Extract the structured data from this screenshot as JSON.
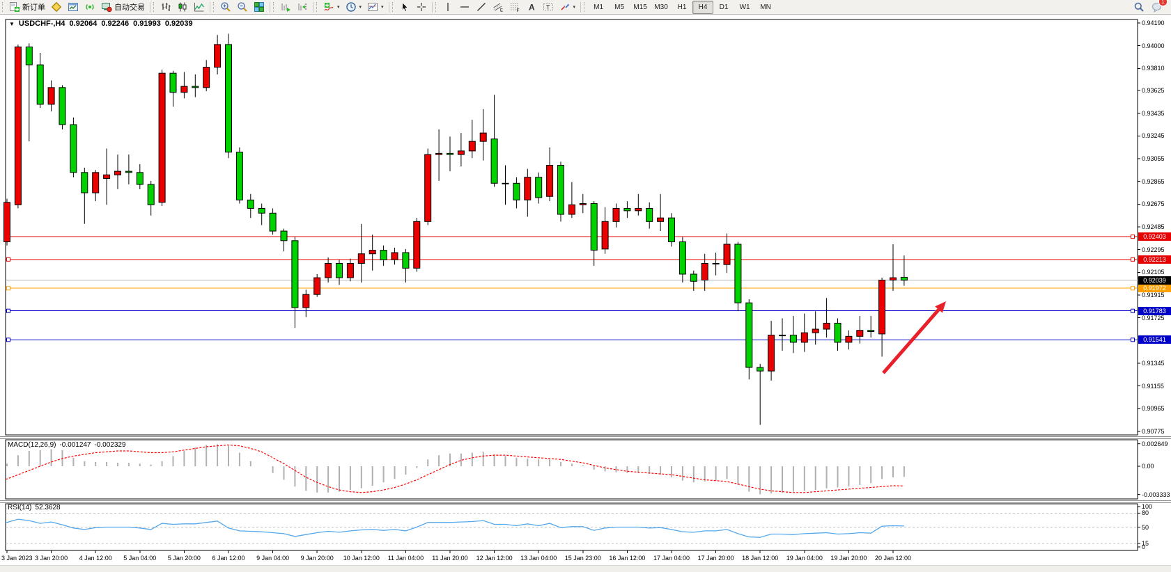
{
  "toolbar": {
    "groups": [
      [
        {
          "name": "new-order",
          "icon": "new-order-icon",
          "label": "新订单"
        },
        {
          "name": "metaeditor",
          "icon": "metaeditor-icon"
        },
        {
          "name": "terminal",
          "icon": "terminal-icon"
        },
        {
          "name": "signals",
          "icon": "signals-icon"
        },
        {
          "name": "auto-trading",
          "icon": "auto-trading-icon",
          "label": "自动交易"
        }
      ],
      [
        {
          "name": "bar-chart",
          "icon": "bar-chart-icon"
        },
        {
          "name": "candle-chart",
          "icon": "candle-chart-icon"
        },
        {
          "name": "line-chart",
          "icon": "line-chart-icon"
        }
      ],
      [
        {
          "name": "zoom-in",
          "icon": "zoom-in-icon"
        },
        {
          "name": "zoom-out",
          "icon": "zoom-out-icon"
        },
        {
          "name": "tile-windows",
          "icon": "tile-windows-icon"
        }
      ],
      [
        {
          "name": "auto-scroll",
          "icon": "auto-scroll-icon"
        },
        {
          "name": "chart-shift",
          "icon": "chart-shift-icon"
        }
      ],
      [
        {
          "name": "indicators",
          "icon": "indicators-icon",
          "dropdown": true
        },
        {
          "name": "periods",
          "icon": "periods-icon",
          "dropdown": true
        },
        {
          "name": "templates",
          "icon": "templates-icon",
          "dropdown": true
        }
      ],
      [
        {
          "name": "cursor",
          "icon": "cursor-icon"
        },
        {
          "name": "crosshair",
          "icon": "crosshair-icon"
        }
      ],
      [
        {
          "name": "vertical-line",
          "icon": "vertical-line-icon"
        },
        {
          "name": "horizontal-line",
          "icon": "horizontal-line-icon"
        },
        {
          "name": "trendline",
          "icon": "trendline-icon"
        },
        {
          "name": "equidistant-channel",
          "icon": "channel-icon"
        },
        {
          "name": "fibonacci",
          "icon": "fibonacci-icon"
        },
        {
          "name": "text",
          "icon": "text-icon"
        },
        {
          "name": "text-label",
          "icon": "label-icon"
        },
        {
          "name": "arrows",
          "icon": "shapes-icon",
          "dropdown": true
        }
      ]
    ],
    "timeframes": [
      {
        "label": "M1"
      },
      {
        "label": "M5"
      },
      {
        "label": "M15"
      },
      {
        "label": "M30"
      },
      {
        "label": "H1"
      },
      {
        "label": "H4",
        "active": true
      },
      {
        "label": "D1"
      },
      {
        "label": "W1"
      },
      {
        "label": "MN"
      }
    ],
    "right": [
      {
        "name": "search",
        "icon": "search-icon"
      },
      {
        "name": "community",
        "icon": "community-icon",
        "badge": "1"
      }
    ]
  },
  "chart": {
    "title": {
      "symbol": "USDCHF-,H4",
      "open": "0.92064",
      "high": "0.92246",
      "low": "0.91993",
      "close": "0.92039"
    },
    "price_axis": {
      "ticks": [
        "0.94190",
        "0.94000",
        "0.93810",
        "0.93625",
        "0.93435",
        "0.93245",
        "0.93055",
        "0.92865",
        "0.92675",
        "0.92485",
        "0.92295",
        "0.92105",
        "0.91915",
        "0.91725",
        "0.91345",
        "0.91155",
        "0.90965",
        "0.90775"
      ]
    },
    "levels": [
      {
        "price": 0.92403,
        "label": "0.92403",
        "color": "#e60000",
        "type": "resistance"
      },
      {
        "price": 0.92213,
        "label": "0.92213",
        "color": "#e60000",
        "type": "resistance"
      },
      {
        "price": 0.91972,
        "label": "0.91972",
        "color": "#ffa000",
        "type": "pivot"
      },
      {
        "price": 0.91783,
        "label": "0.91783",
        "color": "#0000c8",
        "type": "support"
      },
      {
        "price": 0.91541,
        "label": "0.91541",
        "color": "#0000c8",
        "type": "support"
      }
    ],
    "bid_line": {
      "price": 0.92039,
      "label": "0.92039",
      "line_color": "#b4b4b4",
      "badge_color": "#000000"
    },
    "time_axis": [
      "3 Jan 2023",
      "3 Jan 20:00",
      "4 Jan 12:00",
      "5 Jan 04:00",
      "5 Jan 20:00",
      "6 Jan 12:00",
      "9 Jan 04:00",
      "9 Jan 20:00",
      "10 Jan 12:00",
      "11 Jan 04:00",
      "11 Jan 20:00",
      "12 Jan 12:00",
      "13 Jan 04:00",
      "15 Jan 23:00",
      "16 Jan 12:00",
      "17 Jan 04:00",
      "17 Jan 20:00",
      "18 Jan 12:00",
      "19 Jan 04:00",
      "19 Jan 20:00",
      "20 Jan 12:00"
    ],
    "annotation_arrow": {
      "color": "#e8202a"
    }
  },
  "indicators": {
    "macd": {
      "label": "MACD(12,26,9)",
      "value_main": "-0.001247",
      "value_signal": "-0.002329",
      "axis": [
        "0.002649",
        "0.00",
        "-0.003333"
      ],
      "hist_color": "#b0b0b0",
      "signal_color": "#ff0000"
    },
    "rsi": {
      "label": "RSI(14)",
      "value": "52.3628",
      "axis": [
        "100",
        "80",
        "50",
        "15",
        "0"
      ],
      "dashed_levels": [
        80,
        50,
        15
      ],
      "line_color": "#55a8ec"
    }
  },
  "chart_data": {
    "type": "candlestick",
    "symbol": "USDCHF",
    "timeframe": "H4",
    "color_convention": "red=bullish green=bearish",
    "bull_color": "#eb0000",
    "bear_color": "#00d200",
    "ylim": [
      0.90743,
      0.94195
    ],
    "macd_range": [
      -0.003333,
      0.002649
    ],
    "rsi_range": [
      0,
      100
    ],
    "candles": [
      [
        0.9236,
        0.9272,
        0.9233,
        0.9269
      ],
      [
        0.9267,
        0.9401,
        0.9264,
        0.9399
      ],
      [
        0.9399,
        0.9402,
        0.932,
        0.9384
      ],
      [
        0.9384,
        0.9394,
        0.9348,
        0.9351
      ],
      [
        0.9351,
        0.9371,
        0.9345,
        0.9365
      ],
      [
        0.9365,
        0.9367,
        0.933,
        0.9334
      ],
      [
        0.9334,
        0.934,
        0.929,
        0.9294
      ],
      [
        0.9294,
        0.9298,
        0.9251,
        0.9277
      ],
      [
        0.9277,
        0.9296,
        0.927,
        0.9294
      ],
      [
        0.9289,
        0.9314,
        0.9267,
        0.9292
      ],
      [
        0.9292,
        0.9309,
        0.928,
        0.9295
      ],
      [
        0.9295,
        0.9309,
        0.9284,
        0.9294
      ],
      [
        0.9294,
        0.9301,
        0.928,
        0.9284
      ],
      [
        0.9284,
        0.9287,
        0.9258,
        0.9267
      ],
      [
        0.9269,
        0.938,
        0.9266,
        0.9377
      ],
      [
        0.9377,
        0.9379,
        0.9349,
        0.9361
      ],
      [
        0.9361,
        0.9378,
        0.9356,
        0.9366
      ],
      [
        0.9366,
        0.9376,
        0.9357,
        0.9365
      ],
      [
        0.9365,
        0.9388,
        0.9362,
        0.9382
      ],
      [
        0.9382,
        0.9409,
        0.9376,
        0.9401
      ],
      [
        0.9401,
        0.941,
        0.9306,
        0.9311
      ],
      [
        0.9311,
        0.9315,
        0.9268,
        0.9271
      ],
      [
        0.9271,
        0.9276,
        0.9256,
        0.9264
      ],
      [
        0.9264,
        0.9268,
        0.925,
        0.926
      ],
      [
        0.926,
        0.9264,
        0.9242,
        0.9245
      ],
      [
        0.9245,
        0.9247,
        0.9228,
        0.9237
      ],
      [
        0.9237,
        0.924,
        0.9164,
        0.9181
      ],
      [
        0.9181,
        0.9196,
        0.9173,
        0.9192
      ],
      [
        0.9192,
        0.9209,
        0.919,
        0.9206
      ],
      [
        0.9206,
        0.9223,
        0.9202,
        0.9218
      ],
      [
        0.9218,
        0.9221,
        0.92,
        0.9206
      ],
      [
        0.9206,
        0.9222,
        0.9203,
        0.9218
      ],
      [
        0.9218,
        0.9251,
        0.9202,
        0.9226
      ],
      [
        0.9226,
        0.9242,
        0.9212,
        0.9229
      ],
      [
        0.9229,
        0.9233,
        0.9216,
        0.9221
      ],
      [
        0.9221,
        0.9231,
        0.9217,
        0.9227
      ],
      [
        0.9227,
        0.923,
        0.9202,
        0.9214
      ],
      [
        0.9214,
        0.9256,
        0.9211,
        0.9253
      ],
      [
        0.9253,
        0.9314,
        0.925,
        0.9309
      ],
      [
        0.9309,
        0.933,
        0.9287,
        0.931
      ],
      [
        0.931,
        0.9324,
        0.9295,
        0.9309
      ],
      [
        0.9309,
        0.9327,
        0.9299,
        0.9312
      ],
      [
        0.9312,
        0.9338,
        0.9306,
        0.932
      ],
      [
        0.932,
        0.9347,
        0.9304,
        0.9327
      ],
      [
        0.9322,
        0.9359,
        0.9282,
        0.9285
      ],
      [
        0.9285,
        0.93,
        0.9267,
        0.9285
      ],
      [
        0.9285,
        0.929,
        0.9264,
        0.9271
      ],
      [
        0.9271,
        0.9297,
        0.9257,
        0.929
      ],
      [
        0.929,
        0.9294,
        0.9268,
        0.9273
      ],
      [
        0.9274,
        0.9315,
        0.927,
        0.93
      ],
      [
        0.93,
        0.9303,
        0.9253,
        0.9259
      ],
      [
        0.9259,
        0.9286,
        0.9256,
        0.9267
      ],
      [
        0.9267,
        0.9276,
        0.926,
        0.9268
      ],
      [
        0.9268,
        0.927,
        0.9216,
        0.9229
      ],
      [
        0.923,
        0.9265,
        0.9226,
        0.9253
      ],
      [
        0.9253,
        0.9268,
        0.9248,
        0.9264
      ],
      [
        0.9264,
        0.927,
        0.9256,
        0.9262
      ],
      [
        0.9262,
        0.9276,
        0.9258,
        0.9264
      ],
      [
        0.9264,
        0.9269,
        0.9247,
        0.9253
      ],
      [
        0.9253,
        0.9276,
        0.9245,
        0.9256
      ],
      [
        0.9256,
        0.926,
        0.9232,
        0.9236
      ],
      [
        0.9236,
        0.924,
        0.9202,
        0.9209
      ],
      [
        0.9209,
        0.9212,
        0.9195,
        0.9203
      ],
      [
        0.9204,
        0.9226,
        0.9195,
        0.9218
      ],
      [
        0.9218,
        0.9227,
        0.9208,
        0.92175
      ],
      [
        0.9217,
        0.9243,
        0.921,
        0.9234
      ],
      [
        0.9234,
        0.9236,
        0.9178,
        0.9185
      ],
      [
        0.9185,
        0.9188,
        0.9121,
        0.9131
      ],
      [
        0.9131,
        0.9134,
        0.9083,
        0.9128
      ],
      [
        0.9128,
        0.917,
        0.912,
        0.9158
      ],
      [
        0.9158,
        0.9172,
        0.9145,
        0.91575
      ],
      [
        0.9158,
        0.9174,
        0.9143,
        0.9152
      ],
      [
        0.9152,
        0.9176,
        0.9144,
        0.916
      ],
      [
        0.916,
        0.9178,
        0.915,
        0.9163
      ],
      [
        0.9163,
        0.9189,
        0.9156,
        0.9168
      ],
      [
        0.9168,
        0.9172,
        0.9145,
        0.9152
      ],
      [
        0.9152,
        0.9162,
        0.9146,
        0.9157
      ],
      [
        0.9157,
        0.9174,
        0.9151,
        0.9162
      ],
      [
        0.9162,
        0.9174,
        0.9156,
        0.9161
      ],
      [
        0.9159,
        0.9206,
        0.914,
        0.9204
      ],
      [
        0.9204,
        0.9234,
        0.9195,
        0.9206
      ],
      [
        0.92064,
        0.92246,
        0.91993,
        0.92039
      ]
    ],
    "macd_hist": [
      0.0003,
      0.0013,
      0.0018,
      0.0019,
      0.002,
      0.0019,
      0.001,
      0.0006,
      0.0005,
      0.0005,
      0.0004,
      0.0004,
      0.0003,
      0.0002,
      0.0006,
      0.0012,
      0.0018,
      0.0022,
      0.0025,
      0.0026,
      0.0024,
      0.0016,
      0.0006,
      0.0,
      -0.0008,
      -0.0016,
      -0.0024,
      -0.0029,
      -0.0031,
      -0.0031,
      -0.003,
      -0.0028,
      -0.0026,
      -0.0023,
      -0.0019,
      -0.0015,
      -0.001,
      -0.0002,
      0.0008,
      0.0013,
      0.0015,
      0.0015,
      0.0016,
      0.0017,
      0.0014,
      0.0012,
      0.001,
      0.0009,
      0.0008,
      0.0008,
      0.0005,
      0.0003,
      0.0001,
      -0.0004,
      -0.0006,
      -0.0007,
      -0.0008,
      -0.0008,
      -0.0009,
      -0.001,
      -0.0013,
      -0.0017,
      -0.0019,
      -0.0018,
      -0.0017,
      -0.0015,
      -0.0022,
      -0.003,
      -0.0033,
      -0.0032,
      -0.0031,
      -0.003,
      -0.0029,
      -0.0028,
      -0.0026,
      -0.0025,
      -0.0024,
      -0.0022,
      -0.002,
      -0.0015,
      -0.0013,
      -0.00125
    ],
    "macd_signal": [
      -0.0015,
      -0.001,
      -0.0005,
      0.0,
      0.0005,
      0.0009,
      0.0012,
      0.0014,
      0.0016,
      0.0017,
      0.0018,
      0.0018,
      0.0017,
      0.0016,
      0.0016,
      0.0017,
      0.0019,
      0.0021,
      0.0023,
      0.0024,
      0.0025,
      0.0024,
      0.0021,
      0.0017,
      0.001,
      0.0003,
      -0.0005,
      -0.0013,
      -0.0019,
      -0.0024,
      -0.0028,
      -0.003,
      -0.0031,
      -0.003,
      -0.0028,
      -0.0025,
      -0.0021,
      -0.0016,
      -0.001,
      -0.0004,
      0.0002,
      0.0007,
      0.001,
      0.0012,
      0.0013,
      0.0013,
      0.0012,
      0.0011,
      0.001,
      0.0009,
      0.0008,
      0.0006,
      0.0004,
      0.0001,
      -0.0002,
      -0.0004,
      -0.0006,
      -0.0007,
      -0.0008,
      -0.0009,
      -0.001,
      -0.0012,
      -0.0014,
      -0.0016,
      -0.0017,
      -0.0018,
      -0.0021,
      -0.0024,
      -0.0027,
      -0.0029,
      -0.003,
      -0.0031,
      -0.0031,
      -0.003,
      -0.0029,
      -0.0028,
      -0.0027,
      -0.0026,
      -0.0025,
      -0.0024,
      -0.0023,
      -0.00233
    ],
    "rsi_series": [
      60,
      67,
      64,
      58,
      61,
      55,
      48,
      45,
      49,
      50,
      50,
      50,
      48,
      45,
      58,
      56,
      57,
      57,
      60,
      63,
      48,
      42,
      41,
      40,
      38,
      36,
      30,
      34,
      38,
      41,
      39,
      42,
      44,
      45,
      43,
      45,
      42,
      50,
      60,
      60,
      60,
      61,
      62,
      64,
      56,
      56,
      53,
      57,
      53,
      58,
      49,
      51,
      51,
      43,
      48,
      50,
      50,
      50,
      48,
      49,
      45,
      40,
      39,
      42,
      42,
      45,
      36,
      29,
      28,
      35,
      35,
      34,
      36,
      37,
      38,
      35,
      36,
      38,
      37,
      52,
      53,
      52.36
    ]
  }
}
